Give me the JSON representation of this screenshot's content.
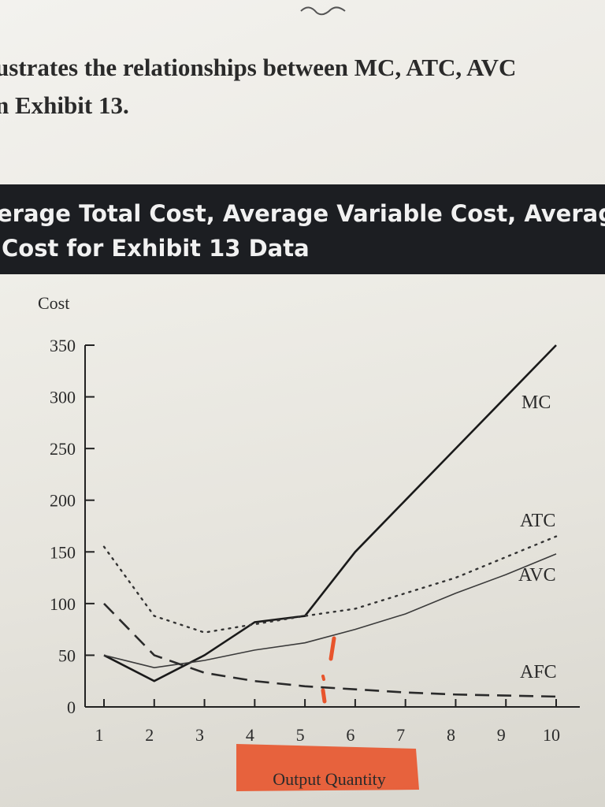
{
  "page": {
    "intro_line1": "ustrates the relationships between MC, ATC, AVC",
    "intro_line2": "n Exhibit 13."
  },
  "banner": {
    "line1": "erage Total Cost, Average Variable Cost, Averag",
    "line2": "Cost for Exhibit 13 Data"
  },
  "chart_data": {
    "type": "line",
    "title": "",
    "xlabel": "Output Quantity",
    "ylabel": "Cost",
    "x": [
      1,
      2,
      3,
      4,
      5,
      6,
      7,
      8,
      9,
      10
    ],
    "xlim": [
      1,
      10
    ],
    "ylim": [
      0,
      350
    ],
    "yticks": [
      0,
      50,
      100,
      150,
      200,
      250,
      300,
      350
    ],
    "grid": false,
    "series": [
      {
        "name": "MC",
        "style": "solid",
        "values": [
          50,
          25,
          50,
          82,
          88,
          150,
          200,
          250,
          300,
          350
        ]
      },
      {
        "name": "ATC",
        "style": "dotted",
        "values": [
          155,
          88,
          72,
          80,
          88,
          95,
          110,
          125,
          145,
          165
        ]
      },
      {
        "name": "AVC",
        "style": "thin",
        "values": [
          50,
          38,
          45,
          55,
          62,
          75,
          90,
          110,
          128,
          148
        ]
      },
      {
        "name": "AFC",
        "style": "dashed",
        "values": [
          100,
          50,
          33,
          25,
          20,
          17,
          14,
          12,
          11,
          10
        ]
      }
    ],
    "series_colors": {
      "MC": "#1a1a1a",
      "ATC": "#333333",
      "AVC": "#3a3a3a",
      "AFC": "#2a2a2a"
    },
    "highlight_color": "#e8542c"
  }
}
